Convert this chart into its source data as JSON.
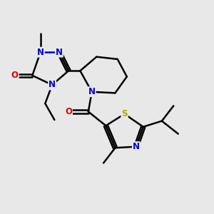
{
  "bg_color": "#e8e8e8",
  "atom_colors": {
    "C": "#000000",
    "N": "#0000cc",
    "O": "#dd0000",
    "S": "#aaaa00"
  },
  "bond_color": "#000000",
  "bond_width": 1.8,
  "font_size": 8.5,
  "xlim": [
    0.5,
    9.5
  ],
  "ylim": [
    1.5,
    9.5
  ]
}
